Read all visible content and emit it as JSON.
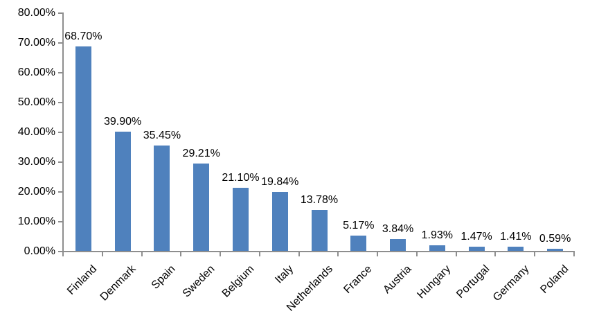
{
  "chart_data": {
    "type": "bar",
    "title": "",
    "xlabel": "",
    "ylabel": "",
    "categories": [
      "Finland",
      "Denmark",
      "Spain",
      "Sweden",
      "Belgium",
      "Italy",
      "Netherlands",
      "France",
      "Austria",
      "Hungary",
      "Portugal",
      "Germany",
      "Poland"
    ],
    "values": [
      68.7,
      39.9,
      35.45,
      29.21,
      21.1,
      19.84,
      13.78,
      5.17,
      3.84,
      1.93,
      1.47,
      1.41,
      0.59
    ],
    "data_labels": [
      "68.70%",
      "39.90%",
      "35.45%",
      "29.21%",
      "21.10%",
      "19.84%",
      "13.78%",
      "5.17%",
      "3.84%",
      "1.93%",
      "1.47%",
      "1.41%",
      "0.59%"
    ],
    "y_tick_labels": [
      "0.00%",
      "10.00%",
      "20.00%",
      "30.00%",
      "40.00%",
      "50.00%",
      "60.00%",
      "70.00%",
      "80.00%"
    ],
    "ylim": [
      0,
      80
    ],
    "y_tick_step": 10,
    "grid": false,
    "legend": false,
    "bar_color": "#4f81bd",
    "axis_color": "#8e8e8e",
    "label_color": "#000000",
    "background_color": "#ffffff"
  }
}
